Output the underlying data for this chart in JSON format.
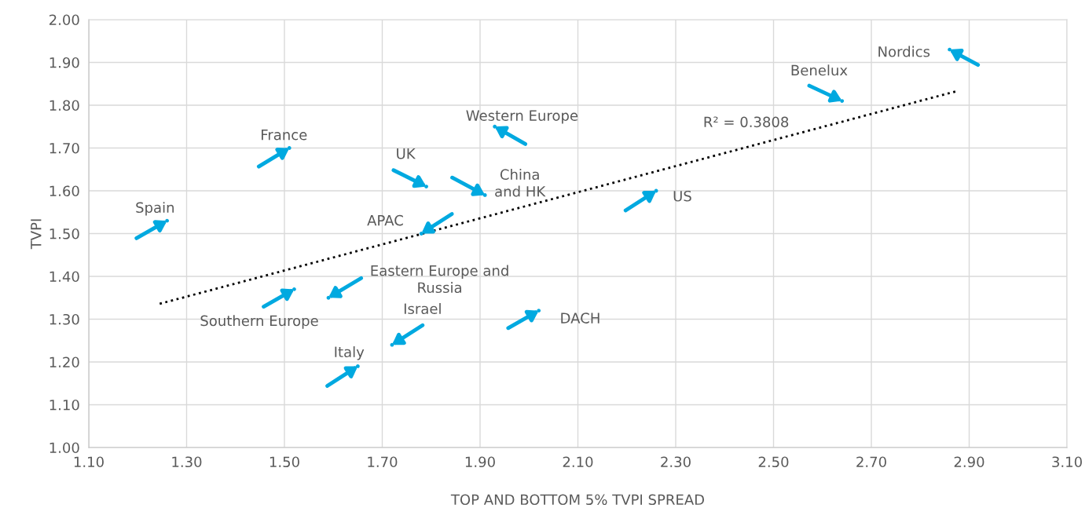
{
  "chart_data": {
    "type": "scatter",
    "xlabel": "TOP AND BOTTOM 5% TVPI SPREAD",
    "ylabel": "TVPI",
    "xlim": [
      1.1,
      3.1
    ],
    "ylim": [
      1.0,
      2.0
    ],
    "xticks": [
      {
        "value": 1.1,
        "label": "1.10"
      },
      {
        "value": 1.3,
        "label": "1.30"
      },
      {
        "value": 1.5,
        "label": "1.50"
      },
      {
        "value": 1.7,
        "label": "1.70"
      },
      {
        "value": 1.9,
        "label": "1.90"
      },
      {
        "value": 2.1,
        "label": "2.10"
      },
      {
        "value": 2.3,
        "label": "2.30"
      },
      {
        "value": 2.5,
        "label": "2.50"
      },
      {
        "value": 2.7,
        "label": "2.70"
      },
      {
        "value": 2.9,
        "label": "2.90"
      },
      {
        "value": 3.1,
        "label": "3.10"
      }
    ],
    "yticks": [
      {
        "value": 1.0,
        "label": "1.00"
      },
      {
        "value": 1.1,
        "label": "1.10"
      },
      {
        "value": 1.2,
        "label": "1.20"
      },
      {
        "value": 1.3,
        "label": "1.30"
      },
      {
        "value": 1.4,
        "label": "1.40"
      },
      {
        "value": 1.5,
        "label": "1.50"
      },
      {
        "value": 1.6,
        "label": "1.60"
      },
      {
        "value": 1.7,
        "label": "1.70"
      },
      {
        "value": 1.8,
        "label": "1.80"
      },
      {
        "value": 1.9,
        "label": "1.90"
      },
      {
        "value": 2.0,
        "label": "2.00"
      }
    ],
    "grid": true,
    "series": [
      {
        "color": "#00a9e0",
        "x": [
          2.86,
          2.64,
          1.93,
          1.51,
          1.79,
          1.91,
          2.26,
          1.26,
          1.78,
          1.52,
          1.59,
          2.02,
          1.72,
          1.65
        ],
        "values": [
          1.93,
          1.81,
          1.75,
          1.7,
          1.61,
          1.59,
          1.6,
          1.53,
          1.5,
          1.37,
          1.35,
          1.32,
          1.24,
          1.19
        ]
      },
      {
        "type": "line",
        "color": "#000000",
        "line_style": "dotted",
        "x": [
          1.245,
          2.875
        ],
        "values": [
          1.336,
          1.833
        ]
      }
    ],
    "annotations": [
      {
        "text": "Nordics",
        "x": 2.86,
        "y": 1.93
      },
      {
        "text": "Benelux",
        "x": 2.64,
        "y": 1.81
      },
      {
        "text": "Western Europe",
        "x": 1.93,
        "y": 1.75
      },
      {
        "text": "France",
        "x": 1.51,
        "y": 1.7
      },
      {
        "text": "UK",
        "x": 1.79,
        "y": 1.61
      },
      {
        "text": "China\nand HK",
        "x": 1.91,
        "y": 1.59
      },
      {
        "text": "US",
        "x": 2.26,
        "y": 1.6
      },
      {
        "text": "Spain",
        "x": 1.26,
        "y": 1.53
      },
      {
        "text": "APAC",
        "x": 1.78,
        "y": 1.5
      },
      {
        "text": "Southern Europe",
        "x": 1.52,
        "y": 1.37
      },
      {
        "text": "Eastern Europe and\nRussia",
        "x": 1.59,
        "y": 1.35
      },
      {
        "text": "DACH",
        "x": 2.02,
        "y": 1.32
      },
      {
        "text": "Israel",
        "x": 1.72,
        "y": 1.24
      },
      {
        "text": "Italy",
        "x": 1.65,
        "y": 1.19
      },
      "R² = 0.3808"
    ]
  }
}
